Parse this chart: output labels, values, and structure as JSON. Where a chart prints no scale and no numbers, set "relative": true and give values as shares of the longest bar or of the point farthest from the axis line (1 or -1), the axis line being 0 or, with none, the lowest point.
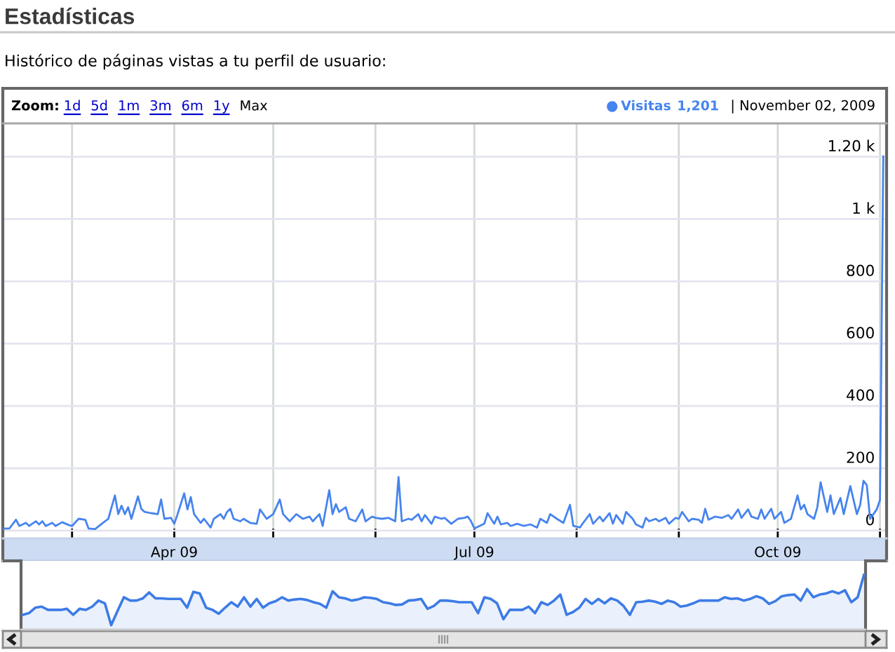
{
  "chart_data": [
    {
      "type": "line",
      "title": "Estadísticas",
      "subtitle": "Histórico de páginas vistas a tu perfil de usuario:",
      "annotations": [
        "Zoom:",
        "1d",
        "5d",
        "1m",
        "3m",
        "6m",
        "1y",
        "Max",
        "1,201",
        "| November 02, 2009"
      ],
      "legend": "top right",
      "grid": true,
      "xlim": [
        "2009-02-08",
        "2009-11-03"
      ],
      "xticks": [
        {
          "value": "2009-03-01",
          "label": null
        },
        {
          "value": "2009-04-01",
          "label": "Apr 09"
        },
        {
          "value": "2009-05-01",
          "label": null
        },
        {
          "value": "2009-06-01",
          "label": null
        },
        {
          "value": "2009-07-01",
          "label": "Jul 09"
        },
        {
          "value": "2009-08-01",
          "label": null
        },
        {
          "value": "2009-09-01",
          "label": null
        },
        {
          "value": "2009-10-01",
          "label": "Oct 09"
        },
        {
          "value": "2009-11-01",
          "label": null
        }
      ],
      "ylim": [
        -25,
        1307
      ],
      "yticks": [
        0,
        200,
        400,
        600,
        800,
        {
          "value": 1000,
          "label": "1 k"
        },
        {
          "value": 1200,
          "label": "1.20 k"
        }
      ],
      "x": [
        "2009-02-08",
        "2009-02-10",
        "2009-02-12",
        "2009-02-13",
        "2009-02-15",
        "2009-02-16",
        "2009-02-18",
        "2009-02-19",
        "2009-02-20",
        "2009-02-21",
        "2009-02-23",
        "2009-02-24",
        "2009-02-26",
        "2009-02-28",
        "2009-03-01",
        "2009-03-03",
        "2009-03-05",
        "2009-03-06",
        "2009-03-08",
        "2009-03-10",
        "2009-03-12",
        "2009-03-14",
        "2009-03-15",
        "2009-03-16",
        "2009-03-17",
        "2009-03-18",
        "2009-03-19",
        "2009-03-21",
        "2009-03-22",
        "2009-03-23",
        "2009-03-25",
        "2009-03-27",
        "2009-03-28",
        "2009-03-29",
        "2009-03-31",
        "2009-04-01",
        "2009-04-02",
        "2009-04-04",
        "2009-04-05",
        "2009-04-06",
        "2009-04-07",
        "2009-04-09",
        "2009-04-10",
        "2009-04-12",
        "2009-04-13",
        "2009-04-15",
        "2009-04-16",
        "2009-04-17",
        "2009-04-18",
        "2009-04-19",
        "2009-04-21",
        "2009-04-22",
        "2009-04-24",
        "2009-04-26",
        "2009-04-27",
        "2009-04-29",
        "2009-05-01",
        "2009-05-03",
        "2009-05-04",
        "2009-05-06",
        "2009-05-08",
        "2009-05-10",
        "2009-05-12",
        "2009-05-13",
        "2009-05-15",
        "2009-05-16",
        "2009-05-18",
        "2009-05-19",
        "2009-05-20",
        "2009-05-21",
        "2009-05-23",
        "2009-05-24",
        "2009-05-26",
        "2009-05-28",
        "2009-05-29",
        "2009-05-31",
        "2009-06-01",
        "2009-06-03",
        "2009-06-05",
        "2009-06-07",
        "2009-06-08",
        "2009-06-09",
        "2009-06-11",
        "2009-06-12",
        "2009-06-14",
        "2009-06-15",
        "2009-06-16",
        "2009-06-18",
        "2009-06-19",
        "2009-06-21",
        "2009-06-22",
        "2009-06-24",
        "2009-06-26",
        "2009-06-28",
        "2009-06-29",
        "2009-06-30",
        "2009-07-01",
        "2009-07-04",
        "2009-07-05",
        "2009-07-07",
        "2009-07-08",
        "2009-07-09",
        "2009-07-11",
        "2009-07-12",
        "2009-07-14",
        "2009-07-16",
        "2009-07-18",
        "2009-07-20",
        "2009-07-21",
        "2009-07-23",
        "2009-07-24",
        "2009-07-26",
        "2009-07-28",
        "2009-07-30",
        "2009-07-31",
        "2009-08-02",
        "2009-08-03",
        "2009-08-05",
        "2009-08-06",
        "2009-08-08",
        "2009-08-09",
        "2009-08-11",
        "2009-08-12",
        "2009-08-13",
        "2009-08-15",
        "2009-08-16",
        "2009-08-18",
        "2009-08-19",
        "2009-08-21",
        "2009-08-22",
        "2009-08-23",
        "2009-08-25",
        "2009-08-26",
        "2009-08-28",
        "2009-08-29",
        "2009-08-31",
        "2009-09-01",
        "2009-09-02",
        "2009-09-04",
        "2009-09-05",
        "2009-09-07",
        "2009-09-08",
        "2009-09-09",
        "2009-09-10",
        "2009-09-12",
        "2009-09-14",
        "2009-09-16",
        "2009-09-17",
        "2009-09-19",
        "2009-09-20",
        "2009-09-22",
        "2009-09-23",
        "2009-09-25",
        "2009-09-26",
        "2009-09-27",
        "2009-09-29",
        "2009-09-30",
        "2009-10-02",
        "2009-10-03",
        "2009-10-05",
        "2009-10-07",
        "2009-10-08",
        "2009-10-09",
        "2009-10-10",
        "2009-10-12",
        "2009-10-13",
        "2009-10-14",
        "2009-10-16",
        "2009-10-17",
        "2009-10-18",
        "2009-10-20",
        "2009-10-21",
        "2009-10-22",
        "2009-10-23",
        "2009-10-25",
        "2009-10-26",
        "2009-10-27",
        "2009-10-28",
        "2009-10-29",
        "2009-10-30",
        "2009-10-31",
        "2009-11-01",
        "2009-11-02"
      ],
      "series": [
        {
          "name": "Visitas",
          "color": "#4684ee",
          "values": [
            7,
            7,
            35,
            15,
            25,
            15,
            30,
            20,
            30,
            15,
            25,
            15,
            27,
            18,
            15,
            38,
            35,
            7,
            5,
            22,
            38,
            113,
            53,
            80,
            53,
            75,
            38,
            110,
            70,
            60,
            56,
            53,
            100,
            38,
            41,
            22,
            53,
            120,
            68,
            108,
            53,
            25,
            38,
            10,
            38,
            53,
            38,
            60,
            70,
            38,
            30,
            38,
            25,
            22,
            68,
            38,
            53,
            100,
            53,
            30,
            53,
            38,
            45,
            30,
            53,
            15,
            130,
            53,
            85,
            60,
            75,
            38,
            30,
            68,
            30,
            45,
            41,
            38,
            41,
            30,
            172,
            30,
            38,
            35,
            53,
            30,
            50,
            22,
            45,
            38,
            41,
            22,
            38,
            41,
            45,
            30,
            7,
            22,
            56,
            22,
            45,
            20,
            25,
            15,
            22,
            15,
            20,
            10,
            38,
            25,
            53,
            38,
            25,
            83,
            15,
            10,
            25,
            53,
            22,
            45,
            30,
            56,
            22,
            50,
            22,
            60,
            38,
            20,
            10,
            41,
            30,
            38,
            30,
            41,
            22,
            41,
            38,
            60,
            30,
            38,
            35,
            25,
            70,
            35,
            45,
            41,
            50,
            38,
            68,
            41,
            68,
            45,
            38,
            68,
            38,
            70,
            38,
            60,
            25,
            38,
            113,
            68,
            83,
            53,
            38,
            75,
            155,
            60,
            113,
            53,
            105,
            53,
            98,
            143,
            53,
            83,
            160,
            146,
            38,
            53,
            68,
            98,
            1201
          ]
        }
      ]
    },
    {
      "type": "area",
      "relative": true,
      "categories": [
        null,
        null,
        null,
        null,
        null,
        null,
        null,
        null,
        null,
        null,
        null,
        null,
        null,
        null,
        null,
        null,
        null,
        null,
        null,
        null,
        null,
        null,
        null,
        null,
        null,
        null,
        null,
        null,
        null,
        null,
        null,
        null,
        null,
        null,
        null,
        null,
        null,
        null,
        null,
        null,
        null,
        null,
        null,
        null,
        null,
        null,
        null,
        null,
        null,
        null,
        null,
        null,
        null,
        null,
        null,
        null,
        null,
        null,
        null,
        null,
        null,
        null,
        null,
        null,
        null,
        null,
        null,
        null,
        null,
        null,
        null,
        null,
        null,
        null,
        null,
        null,
        null,
        null,
        null,
        null,
        null,
        null,
        null,
        null,
        null,
        null,
        null,
        null,
        null,
        null,
        null,
        null,
        null,
        null,
        null,
        null,
        null,
        null,
        null,
        null,
        null,
        null,
        null,
        null,
        null,
        null,
        null,
        null,
        null,
        null,
        null,
        null,
        null,
        null,
        null,
        null,
        null,
        null,
        null,
        null,
        null,
        null,
        null,
        null,
        null,
        null,
        null,
        null,
        null,
        null,
        null,
        null,
        null,
        null
      ],
      "series": [
        {
          "color": "#3d7be6",
          "values": [
            0.27,
            0.3,
            0.4,
            0.42,
            0.36,
            0.36,
            0.36,
            0.38,
            0.27,
            0.38,
            0.36,
            0.42,
            0.53,
            0.48,
            0.08,
            0.34,
            0.59,
            0.53,
            0.53,
            0.57,
            0.68,
            0.57,
            0.57,
            0.56,
            0.56,
            0.56,
            0.4,
            0.69,
            0.66,
            0.4,
            0.36,
            0.29,
            0.4,
            0.5,
            0.42,
            0.59,
            0.42,
            0.56,
            0.4,
            0.48,
            0.52,
            0.59,
            0.53,
            0.55,
            0.56,
            0.54,
            0.5,
            0.47,
            0.4,
            0.7,
            0.59,
            0.57,
            0.53,
            0.55,
            0.59,
            0.58,
            0.56,
            0.5,
            0.48,
            0.45,
            0.46,
            0.53,
            0.54,
            0.56,
            0.38,
            0.43,
            0.53,
            0.53,
            0.52,
            0.5,
            0.5,
            0.5,
            0.3,
            0.59,
            0.56,
            0.48,
            0.19,
            0.36,
            0.36,
            0.36,
            0.42,
            0.3,
            0.5,
            0.45,
            0.53,
            0.64,
            0.27,
            0.32,
            0.4,
            0.56,
            0.47,
            0.56,
            0.48,
            0.57,
            0.53,
            0.43,
            0.27,
            0.5,
            0.51,
            0.53,
            0.51,
            0.47,
            0.53,
            0.5,
            0.42,
            0.44,
            0.48,
            0.53,
            0.53,
            0.53,
            0.53,
            0.59,
            0.56,
            0.57,
            0.53,
            0.56,
            0.61,
            0.57,
            0.47,
            0.52,
            0.61,
            0.63,
            0.64,
            0.53,
            0.74,
            0.59,
            0.64,
            0.66,
            0.7,
            0.66,
            0.72,
            0.5,
            0.59,
            1
          ]
        }
      ]
    }
  ]
}
